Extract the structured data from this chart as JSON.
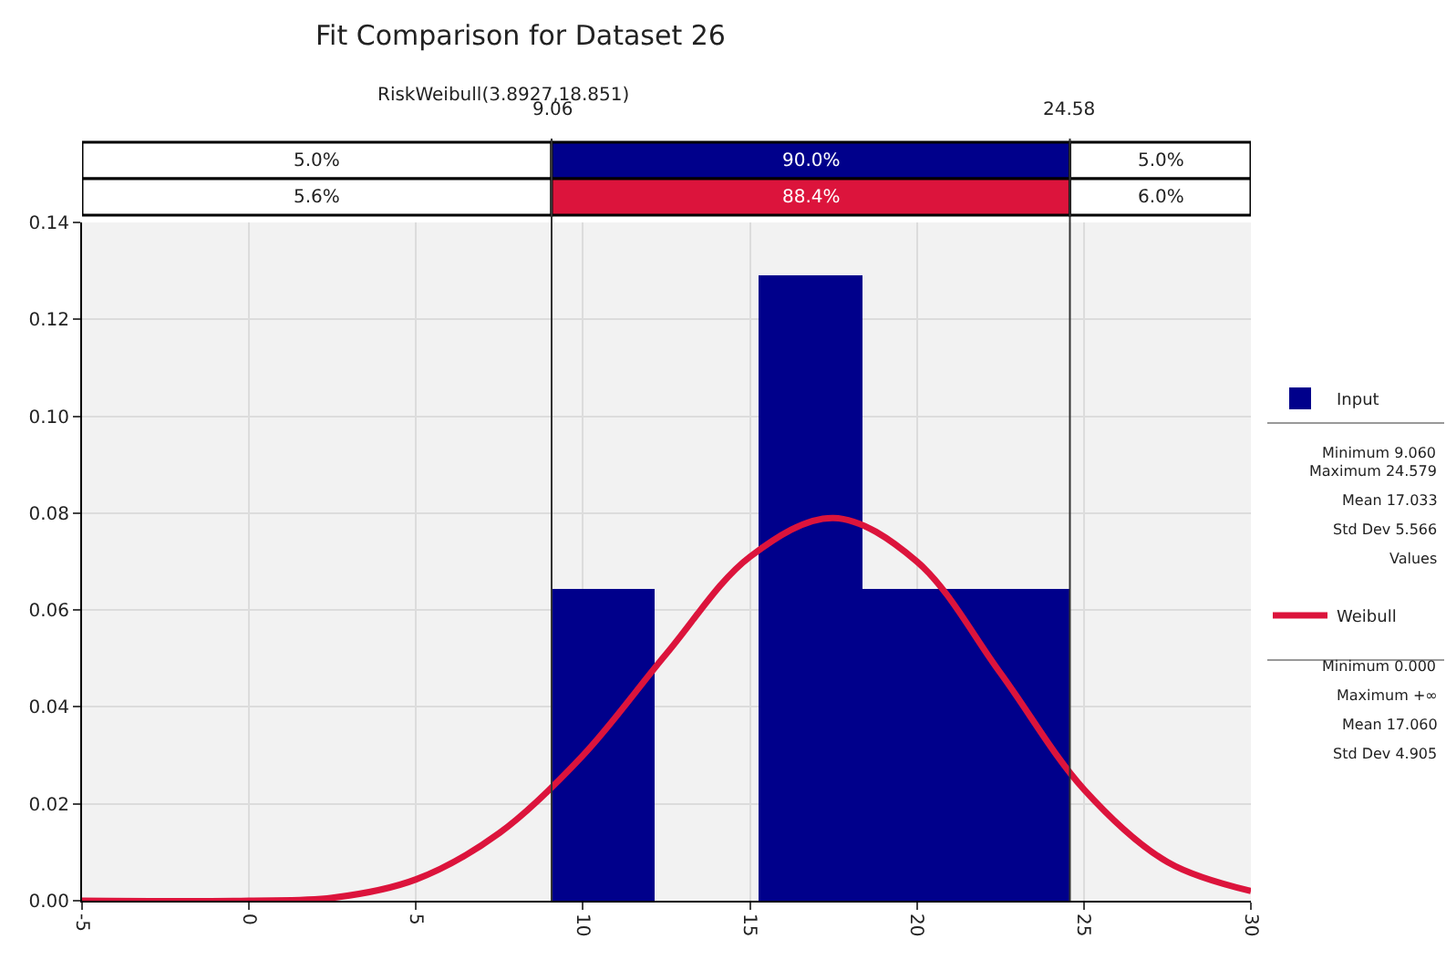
{
  "chart_data": {
    "type": "histogram",
    "title": "Fit Comparison for Dataset 26",
    "subtitle": "RiskWeibull(3.8927,18.851)",
    "bins": [
      9.06,
      12.164,
      15.268,
      18.371,
      21.475,
      24.579
    ],
    "series": [
      {
        "name": "Input",
        "color": "#00008b",
        "values": [
          0.0645,
          0,
          0.129,
          0.0645,
          0.0645
        ]
      },
      {
        "name": "Weibull",
        "type": "line",
        "color": "#dc143c",
        "x": [
          -5,
          0,
          2.5,
          5,
          7.5,
          10,
          12.5,
          15,
          17.5,
          20,
          22.5,
          25,
          27.5,
          30
        ],
        "values": [
          0,
          0,
          0.0006,
          0.0044,
          0.014,
          0.03,
          0.051,
          0.071,
          0.079,
          0.07,
          0.047,
          0.023,
          0.008,
          0.002
        ]
      }
    ],
    "xlim": [
      -5,
      30
    ],
    "xticks": [
      -5,
      0,
      5,
      10,
      15,
      20,
      25,
      30
    ],
    "ylim": [
      0,
      0.14
    ],
    "yticks": [
      {
        "value": 0,
        "label": "0.00"
      },
      {
        "value": 0.02,
        "label": "0.02"
      },
      {
        "value": 0.04,
        "label": "0.04"
      },
      {
        "value": 0.06,
        "label": "0.06"
      },
      {
        "value": 0.08,
        "label": "0.08"
      },
      {
        "value": 0.1,
        "label": "0.10"
      },
      {
        "value": 0.12,
        "label": "0.12"
      },
      {
        "value": 0.14,
        "label": "0.14"
      }
    ],
    "ref_lines": [
      {
        "axis": "x",
        "value": 9.06,
        "label": "9.06"
      },
      {
        "axis": "x",
        "value": 24.58,
        "label": "24.58"
      }
    ],
    "annotations": [
      "5.0%",
      "90.0%",
      "5.0%",
      "5.6%",
      "88.4%",
      "6.0%",
      "Minimum 9.060",
      "Maximum 24.579",
      "Mean 17.033",
      "Std Dev 5.566",
      "Values",
      "Minimum 0.000",
      "Maximum +∞",
      "Mean 17.060",
      "Std Dev 4.905"
    ],
    "grid": true,
    "legend": "right"
  }
}
